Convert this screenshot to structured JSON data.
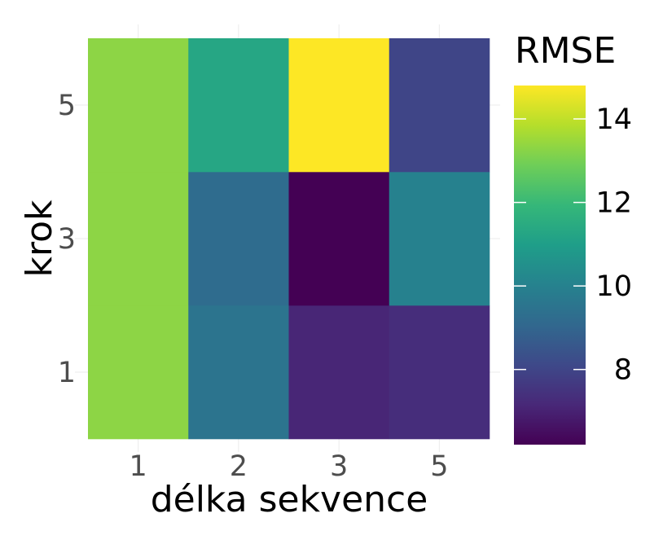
{
  "chart_data": {
    "type": "heatmap",
    "title": "",
    "xlabel": "délka sekvence",
    "ylabel": "krok",
    "x_categories": [
      "1",
      "2",
      "3",
      "5"
    ],
    "y_categories": [
      "1",
      "3",
      "5"
    ],
    "values": [
      [
        13.3,
        9.5,
        7.1,
        7.3
      ],
      [
        13.3,
        9.2,
        6.2,
        10.0
      ],
      [
        13.3,
        11.3,
        14.8,
        8.0
      ]
    ],
    "legend": {
      "title": "RMSE",
      "ticks": [
        8,
        10,
        12,
        14
      ],
      "range": [
        6.2,
        14.8
      ],
      "placement": "right"
    },
    "colormap": "viridis",
    "colors": [
      "#440154",
      "#482878",
      "#3e4989",
      "#31688e",
      "#26828e",
      "#1f9e89",
      "#35b779",
      "#6ece58",
      "#b5de2b",
      "#fde725"
    ],
    "grid": true
  }
}
